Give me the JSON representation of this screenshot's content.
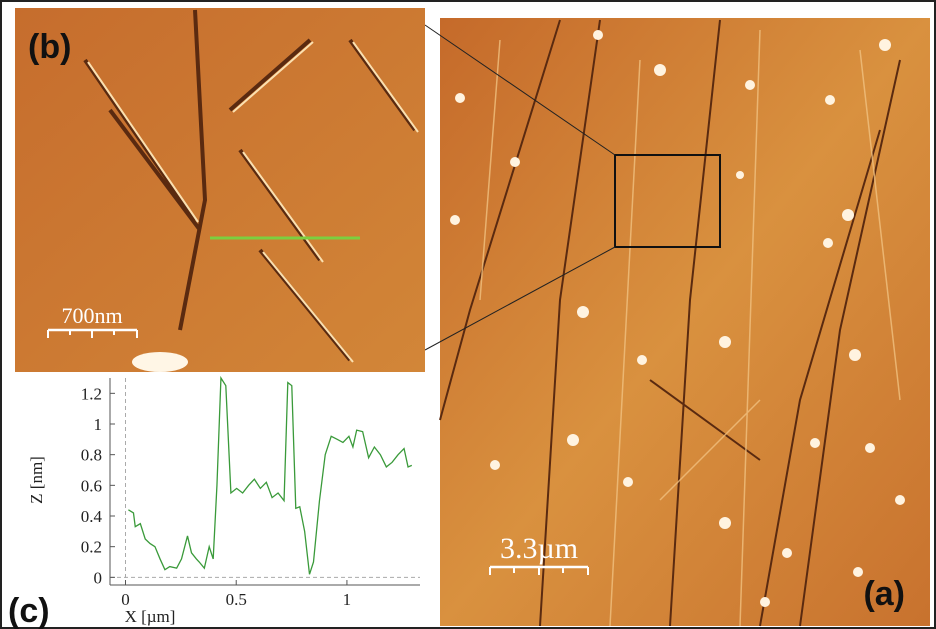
{
  "figure": {
    "panel_a": "(a)",
    "panel_b": "(b)",
    "panel_c": "(c)",
    "scale_b": "700nm",
    "scale_a": "3.3µm"
  },
  "chart_data": {
    "type": "line",
    "xlabel": "X [µm]",
    "ylabel": "Z [nm]",
    "xlim": [
      -0.07,
      1.33
    ],
    "ylim": [
      -0.05,
      1.3
    ],
    "xticks": [
      0,
      0.5,
      1
    ],
    "yticks": [
      0,
      0.2,
      0.4,
      0.6,
      0.8,
      1,
      1.2
    ],
    "series": [
      {
        "color": "#3a9a3a",
        "x": [
          0.013,
          0.036,
          0.044,
          0.067,
          0.089,
          0.111,
          0.133,
          0.156,
          0.178,
          0.2,
          0.231,
          0.253,
          0.28,
          0.298,
          0.32,
          0.333,
          0.356,
          0.378,
          0.396,
          0.413,
          0.431,
          0.453,
          0.476,
          0.502,
          0.529,
          0.556,
          0.582,
          0.609,
          0.636,
          0.662,
          0.689,
          0.716,
          0.733,
          0.751,
          0.769,
          0.787,
          0.809,
          0.831,
          0.849,
          0.876,
          0.902,
          0.929,
          0.956,
          0.982,
          1.009,
          1.027,
          1.044,
          1.071,
          1.098,
          1.124,
          1.151,
          1.178,
          1.204,
          1.231,
          1.258,
          1.276,
          1.293
        ],
        "values": [
          0.44,
          0.42,
          0.33,
          0.35,
          0.25,
          0.22,
          0.2,
          0.12,
          0.05,
          0.07,
          0.06,
          0.12,
          0.27,
          0.16,
          0.12,
          0.1,
          0.06,
          0.2,
          0.12,
          0.6,
          1.3,
          1.25,
          0.55,
          0.58,
          0.55,
          0.6,
          0.64,
          0.58,
          0.62,
          0.52,
          0.55,
          0.5,
          1.27,
          1.25,
          0.45,
          0.46,
          0.3,
          0.02,
          0.1,
          0.5,
          0.8,
          0.92,
          0.9,
          0.88,
          0.92,
          0.85,
          0.96,
          0.95,
          0.78,
          0.85,
          0.8,
          0.72,
          0.75,
          0.8,
          0.84,
          0.72,
          0.73
        ]
      }
    ]
  }
}
